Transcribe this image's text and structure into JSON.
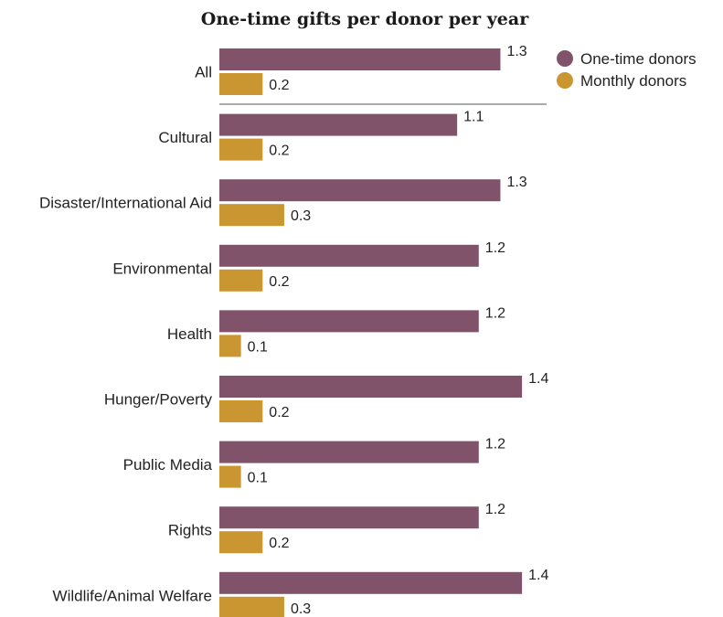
{
  "chart_data": {
    "type": "bar",
    "orientation": "horizontal",
    "title": "One-time gifts per donor per year",
    "xlabel": "",
    "ylabel": "",
    "categories": [
      "All",
      "Cultural",
      "Disaster/International Aid",
      "Environmental",
      "Health",
      "Hunger/Poverty",
      "Public Media",
      "Rights",
      "Wildlife/Animal Welfare"
    ],
    "series": [
      {
        "name": "One-time donors",
        "color": "#80536b",
        "values": [
          1.3,
          1.1,
          1.3,
          1.2,
          1.2,
          1.4,
          1.2,
          1.2,
          1.4
        ],
        "labels": [
          "1.3",
          "1.1",
          "1.3",
          "1.2",
          "1.2",
          "1.4",
          "1.2",
          "1.2",
          "1.4"
        ]
      },
      {
        "name": "Monthly donors",
        "color": "#c99631",
        "values": [
          0.2,
          0.2,
          0.3,
          0.2,
          0.1,
          0.2,
          0.1,
          0.2,
          0.3
        ],
        "labels": [
          "0.2",
          "0.2",
          "0.3",
          "0.2",
          "0.1",
          "0.2",
          "0.1",
          "0.2",
          "0.3"
        ]
      }
    ],
    "xlim": [
      0,
      1.45
    ],
    "grid": false,
    "legend_position": "top-right",
    "separator_after_category": "All"
  }
}
